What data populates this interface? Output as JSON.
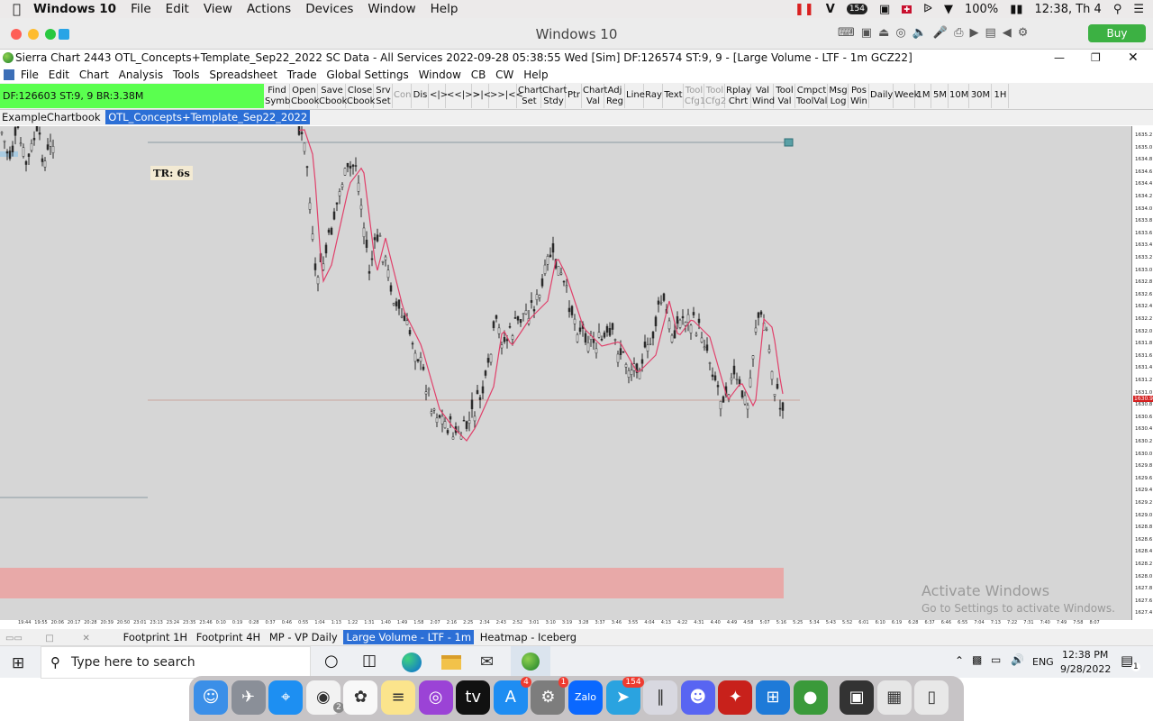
{
  "mac": {
    "app_name": "Windows 10",
    "menus": [
      "File",
      "Edit",
      "View",
      "Actions",
      "Devices",
      "Window",
      "Help"
    ],
    "battery": "100%",
    "clock": "12:38, Th 4",
    "notif_badge": "154"
  },
  "vm": {
    "title": "Windows 10",
    "buy_label": "Buy"
  },
  "sierra": {
    "title": "Sierra Chart 2443 OTL_Concepts+Template_Sep22_2022  SC Data - All Services 2022-09-28  05:38:55 Wed [Sim]  DF:126574  ST:9, 9 - [Large Volume - LTF - 1m GCZ22]",
    "menus": [
      "File",
      "Edit",
      "Chart",
      "Analysis",
      "Tools",
      "Spreadsheet",
      "Trade",
      "Global Settings",
      "Window",
      "CB",
      "CW",
      "Help"
    ],
    "status": "DF:126603  ST:9, 9  BR:3.38M",
    "toolbar": [
      {
        "label": "Find\nSymb",
        "disabled": false
      },
      {
        "label": "Open\nCbook",
        "disabled": false
      },
      {
        "label": "Save\nCbook",
        "disabled": false
      },
      {
        "label": "Close\nCbook",
        "disabled": false
      },
      {
        "label": "Srv\nSet",
        "disabled": false
      },
      {
        "label": "Con",
        "disabled": true
      },
      {
        "label": "Dis",
        "disabled": false
      },
      {
        "label": "<|>",
        "disabled": false
      },
      {
        "label": "<<|>>",
        "disabled": false
      },
      {
        "label": ">|<",
        "disabled": false
      },
      {
        "label": ">>|<<",
        "disabled": false
      },
      {
        "label": "Chart\nSet",
        "disabled": false
      },
      {
        "label": "Chart\nStdy",
        "disabled": false
      },
      {
        "label": "Ptr",
        "disabled": false
      },
      {
        "label": "Chart\nVal",
        "disabled": false
      },
      {
        "label": "Adj\nReg",
        "disabled": false
      },
      {
        "label": "Line",
        "disabled": false
      },
      {
        "label": "Ray",
        "disabled": false
      },
      {
        "label": "Text",
        "disabled": false
      },
      {
        "label": "Tool\nCfg1",
        "disabled": true
      },
      {
        "label": "Tool\nCfg2",
        "disabled": true
      },
      {
        "label": "Rplay\nChrt",
        "disabled": false
      },
      {
        "label": "Val\nWind",
        "disabled": false
      },
      {
        "label": "Tool\nVal",
        "disabled": false
      },
      {
        "label": "Cmpct\nToolVal",
        "disabled": false
      },
      {
        "label": "Msg\nLog",
        "disabled": false
      },
      {
        "label": "Pos\nWin",
        "disabled": false
      },
      {
        "label": "Daily",
        "disabled": false
      },
      {
        "label": "Week",
        "disabled": false
      },
      {
        "label": "1M",
        "disabled": false
      },
      {
        "label": "5M",
        "disabled": false
      },
      {
        "label": "10M",
        "disabled": false
      },
      {
        "label": "30M",
        "disabled": false
      },
      {
        "label": "1H",
        "disabled": false
      }
    ],
    "chartbook_tabs": [
      "ExampleChartbook",
      "OTL_Concepts+Template_Sep22_2022"
    ],
    "chart_label": "TR: 6s",
    "last_price": "1630.9",
    "activate_title": "Activate Windows",
    "activate_sub": "Go to Settings to activate Windows.",
    "price_ticks": [
      "1635.2",
      "1635.0",
      "1634.8",
      "1634.6",
      "1634.4",
      "1634.2",
      "1634.0",
      "1633.8",
      "1633.6",
      "1633.4",
      "1633.2",
      "1633.0",
      "1632.8",
      "1632.6",
      "1632.4",
      "1632.2",
      "1632.0",
      "1631.8",
      "1631.6",
      "1631.4",
      "1631.2",
      "1631.0",
      "1630.8",
      "1630.6",
      "1630.4",
      "1630.2",
      "1630.0",
      "1629.8",
      "1629.6",
      "1629.4",
      "1629.2",
      "1629.0",
      "1628.8",
      "1628.6",
      "1628.4",
      "1628.2",
      "1628.0",
      "1627.8",
      "1627.6",
      "1627.4"
    ],
    "time_ticks": [
      "19:44",
      "19:55",
      "20:06",
      "20:17",
      "20:28",
      "20:39",
      "20:50",
      "23:01",
      "23:13",
      "23:24",
      "23:35",
      "23:46",
      "0:10",
      "0:19",
      "0:28",
      "0:37",
      "0:46",
      "0:55",
      "1:04",
      "1:13",
      "1:22",
      "1:31",
      "1:40",
      "1:49",
      "1:58",
      "2:07",
      "2:16",
      "2:25",
      "2:34",
      "2:43",
      "2:52",
      "3:01",
      "3:10",
      "3:19",
      "3:28",
      "3:37",
      "3:46",
      "3:55",
      "4:04",
      "4:13",
      "4:22",
      "4:31",
      "4:40",
      "4:49",
      "4:58",
      "5:07",
      "5:16",
      "5:25",
      "5:34",
      "5:43",
      "5:52",
      "6:01",
      "6:10",
      "6:19",
      "6:28",
      "6:37",
      "6:46",
      "6:55",
      "7:04",
      "7:13",
      "7:22",
      "7:31",
      "7:40",
      "7:49",
      "7:58",
      "8:07"
    ],
    "chart_tabs": [
      "Footprint 1H",
      "Footprint 4H",
      "MP - VP Daily",
      "Large Volume - LTF - 1m",
      "Heatmap - Iceberg"
    ]
  },
  "taskbar": {
    "search_placeholder": "Type here to search",
    "lang": "ENG",
    "time": "12:38 PM",
    "date": "9/28/2022",
    "notif_count": "1"
  },
  "dock": {
    "badges": {
      "appstore": "4",
      "settings": "1",
      "telegram": "154",
      "chrome": "2"
    },
    "apps": [
      "finder",
      "launchpad",
      "safari",
      "chrome",
      "photos",
      "notes",
      "podcasts",
      "tv",
      "appstore",
      "settings",
      "zalo",
      "telegram",
      "parallels",
      "discord",
      "acrobat",
      "windows",
      "globe",
      "screenshot",
      "tables",
      "trash"
    ],
    "zalo_label": "Zalo"
  },
  "colors": {
    "green_status": "#5aff4f",
    "selected_tab": "#2c6fd6",
    "ma_line": "#e0406a",
    "zone": "#e8a9a8",
    "buy": "#3cb143"
  }
}
